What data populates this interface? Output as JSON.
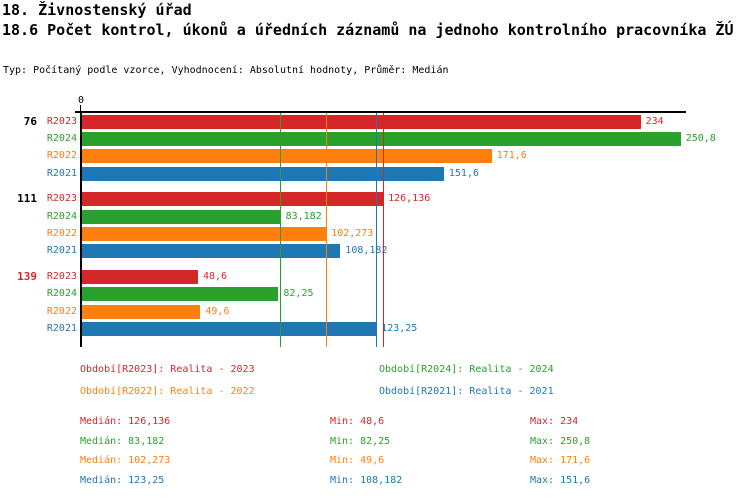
{
  "header": {
    "title": "18. Živnostenský úřad",
    "subtitle": "18.6 Počet kontrol, úkonů a úředních záznamů na jednoho kontrolního pracovníka ŽÚ",
    "meta": "Typ: Počítaný podle vzorce, Vyhodnocení: Absolutní hodnoty, Průměr: Medián"
  },
  "chart_data": {
    "type": "bar",
    "orientation": "horizontal",
    "title": "18.6 Počet kontrol, úkonů a úředních záznamů na jednoho kontrolního pracovníka ŽÚ",
    "grid": false,
    "legend_position": "bottom",
    "axis": {
      "zero_label": "0",
      "xlim": [
        0,
        253
      ]
    },
    "categories": [
      "76",
      "111",
      "139"
    ],
    "category_colors": [
      "#000000",
      "#000000",
      "#d62728"
    ],
    "series": [
      {
        "name": "R2023",
        "color": "#d62728",
        "legend": "Období[R2023]: Realita - 2023",
        "values": [
          234,
          126.136,
          48.6
        ],
        "value_labels": [
          "234",
          "126,136",
          "48,6"
        ],
        "median": 126.136,
        "median_label": "126,136",
        "min_label": "48,6",
        "max_label": "234"
      },
      {
        "name": "R2024",
        "color": "#2ca02c",
        "legend": "Období[R2024]: Realita - 2024",
        "values": [
          250.8,
          83.182,
          82.25
        ],
        "value_labels": [
          "250,8",
          "83,182",
          "82,25"
        ],
        "median": 83.182,
        "median_label": "83,182",
        "min_label": "82,25",
        "max_label": "250,8"
      },
      {
        "name": "R2022",
        "color": "#ff7f0e",
        "legend": "Období[R2022]: Realita - 2022",
        "values": [
          171.6,
          102.273,
          49.6
        ],
        "value_labels": [
          "171,6",
          "102,273",
          "49,6"
        ],
        "median": 102.273,
        "median_label": "102,273",
        "min_label": "49,6",
        "max_label": "171,6"
      },
      {
        "name": "R2021",
        "color": "#1f77b4",
        "legend": "Období[R2021]: Realita - 2021",
        "values": [
          151.6,
          108.182,
          123.25
        ],
        "value_labels": [
          "151,6",
          "108,182",
          "123,25"
        ],
        "median": 123.25,
        "median_label": "123,25",
        "min_label": "108,182",
        "max_label": "151,6"
      }
    ],
    "stats_labels": {
      "median": "Medián",
      "min": "Min",
      "max": "Max"
    }
  }
}
